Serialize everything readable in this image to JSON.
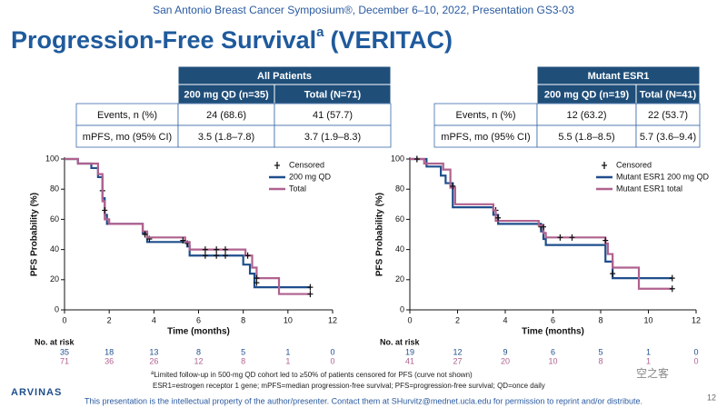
{
  "header": "San Antonio Breast Cancer Symposium®, December 6–10, 2022, Presentation GS3-03",
  "title": {
    "text": "Progression-Free Survival",
    "sup": "a",
    "rest": "(VERITAC)"
  },
  "tables": [
    {
      "header": "All Patients",
      "columns": [
        "200 mg QD (n=35)",
        "Total (N=71)"
      ],
      "rows": [
        [
          "Events, n (%)",
          "24 (68.6)",
          "41 (57.7)"
        ],
        [
          "mPFS, mo (95% CI)",
          "3.5 (1.8–7.8)",
          "3.7 (1.9–8.3)"
        ]
      ]
    },
    {
      "header": "Mutant ESR1",
      "columns": [
        "200 mg QD (n=19)",
        "Total (N=41)"
      ],
      "rows": [
        [
          "Events, n (%)",
          "12 (63.2)",
          "22 (53.7)"
        ],
        [
          "mPFS, mo (95% CI)",
          "5.5 (1.8–8.5)",
          "5.7 (3.6–9.4)"
        ]
      ]
    }
  ],
  "chart_data": [
    {
      "type": "line",
      "x_label": "Time (months)",
      "y_label": "PFS Probability (%)",
      "xlim": [
        0,
        12
      ],
      "xticks": [
        0,
        2,
        4,
        6,
        8,
        10,
        12
      ],
      "ylim": [
        0,
        100
      ],
      "yticks": [
        0,
        20,
        40,
        60,
        80,
        100
      ],
      "censored_label": "Censored",
      "at_risk_label": "No. at risk",
      "series": [
        {
          "name": "200 mg QD",
          "color": "#1f4e8c",
          "x": [
            0,
            0.6,
            0.6,
            1.2,
            1.2,
            1.5,
            1.5,
            1.7,
            1.7,
            1.8,
            1.8,
            1.9,
            1.9,
            3.5,
            3.5,
            3.7,
            3.7,
            5.5,
            5.5,
            5.6,
            5.6,
            8.0,
            8.0,
            8.3,
            8.3,
            8.5,
            8.5,
            11
          ],
          "values": [
            100,
            100,
            97,
            97,
            94,
            94,
            88,
            88,
            74,
            74,
            63,
            63,
            57,
            57,
            51,
            51,
            45,
            45,
            42,
            42,
            36,
            36,
            30,
            30,
            24,
            24,
            15,
            15
          ],
          "censored_x": [
            1.7,
            3.8,
            5.5,
            6.3,
            6.8,
            7.2,
            8.6,
            11
          ],
          "censored_y": [
            79,
            47,
            44,
            36,
            36,
            36,
            18,
            15
          ],
          "at_risk": [
            35,
            18,
            13,
            8,
            5,
            1,
            0
          ]
        },
        {
          "name": "Total",
          "color": "#b0628f",
          "x": [
            0,
            0.6,
            0.6,
            1.5,
            1.5,
            1.7,
            1.7,
            1.8,
            1.8,
            2.0,
            2.0,
            3.5,
            3.5,
            3.7,
            3.7,
            5.4,
            5.4,
            5.6,
            5.6,
            8.1,
            8.1,
            8.4,
            8.4,
            8.6,
            8.6,
            9.6,
            9.6,
            11
          ],
          "values": [
            100,
            100,
            97,
            97,
            90,
            90,
            72,
            72,
            60,
            60,
            57,
            57,
            52,
            52,
            48,
            48,
            45,
            45,
            40,
            40,
            36,
            36,
            28,
            28,
            21,
            21,
            10.5,
            10.5
          ],
          "censored_x": [
            1.8,
            3.6,
            5.3,
            6.3,
            6.8,
            7.2,
            8.2,
            8.6,
            11
          ],
          "censored_y": [
            66,
            50,
            46,
            40,
            40,
            40,
            36,
            21,
            10.5
          ],
          "at_risk": [
            71,
            36,
            26,
            12,
            8,
            1,
            0
          ]
        }
      ]
    },
    {
      "type": "line",
      "x_label": "Time (months)",
      "y_label": "PFS Probability (%)",
      "xlim": [
        0,
        12
      ],
      "xticks": [
        0,
        2,
        4,
        6,
        8,
        10,
        12
      ],
      "ylim": [
        0,
        100
      ],
      "yticks": [
        0,
        20,
        40,
        60,
        80,
        100
      ],
      "censored_label": "Censored",
      "at_risk_label": "No. at risk",
      "series": [
        {
          "name": "Mutant ESR1 200 mg QD",
          "color": "#1f4e8c",
          "x": [
            0,
            0.7,
            0.7,
            1.3,
            1.3,
            1.5,
            1.5,
            1.8,
            1.8,
            3.5,
            3.5,
            3.7,
            3.7,
            5.5,
            5.5,
            5.6,
            5.6,
            5.7,
            5.7,
            8.2,
            8.2,
            8.5,
            8.5,
            11
          ],
          "values": [
            100,
            100,
            95,
            95,
            89,
            89,
            84,
            84,
            68,
            68,
            63,
            63,
            57,
            57,
            52,
            52,
            47,
            47,
            43,
            43,
            32,
            32,
            21,
            21
          ],
          "censored_x": [
            0.3,
            3.6,
            5.5,
            8.5,
            11
          ],
          "censored_y": [
            100,
            66,
            55,
            24,
            21
          ],
          "at_risk": [
            19,
            12,
            9,
            6,
            5,
            1,
            0
          ]
        },
        {
          "name": "Mutant ESR1 total",
          "color": "#b0628f",
          "x": [
            0,
            0.6,
            0.6,
            1.4,
            1.4,
            1.7,
            1.7,
            1.9,
            1.9,
            3.5,
            3.5,
            3.6,
            3.6,
            5.4,
            5.4,
            5.6,
            5.6,
            5.7,
            5.7,
            8.2,
            8.2,
            8.3,
            8.3,
            8.5,
            8.5,
            9.6,
            9.6,
            11
          ],
          "values": [
            100,
            100,
            97,
            97,
            93,
            93,
            81,
            81,
            70,
            70,
            66,
            66,
            59,
            59,
            56,
            56,
            51,
            51,
            48,
            48,
            44,
            44,
            37,
            37,
            28,
            28,
            14,
            14
          ],
          "censored_x": [
            0.3,
            1.8,
            3.7,
            5.6,
            6.3,
            6.8,
            8.2,
            11
          ],
          "censored_y": [
            100,
            82,
            61,
            55,
            48,
            48,
            46,
            14
          ],
          "at_risk": [
            41,
            27,
            20,
            10,
            8,
            1,
            0
          ]
        }
      ]
    }
  ],
  "footnotes": {
    "sup": "a",
    "line1": "Limited follow-up in 500-mg QD cohort led to ≥50% of patients censored for PFS (curve not shown)",
    "line2": "ESR1=estrogen receptor 1 gene; mPFS=median progression-free survival; PFS=progression-free survival; QD=once daily"
  },
  "logo": "ARVINAS",
  "watermark": "空之客",
  "footer": "This presentation is the intellectual property of the author/presenter. Contact them at SHurvitz@mednet.ucla.edu for permission to reprint and/or distribute.",
  "page_number": "12"
}
